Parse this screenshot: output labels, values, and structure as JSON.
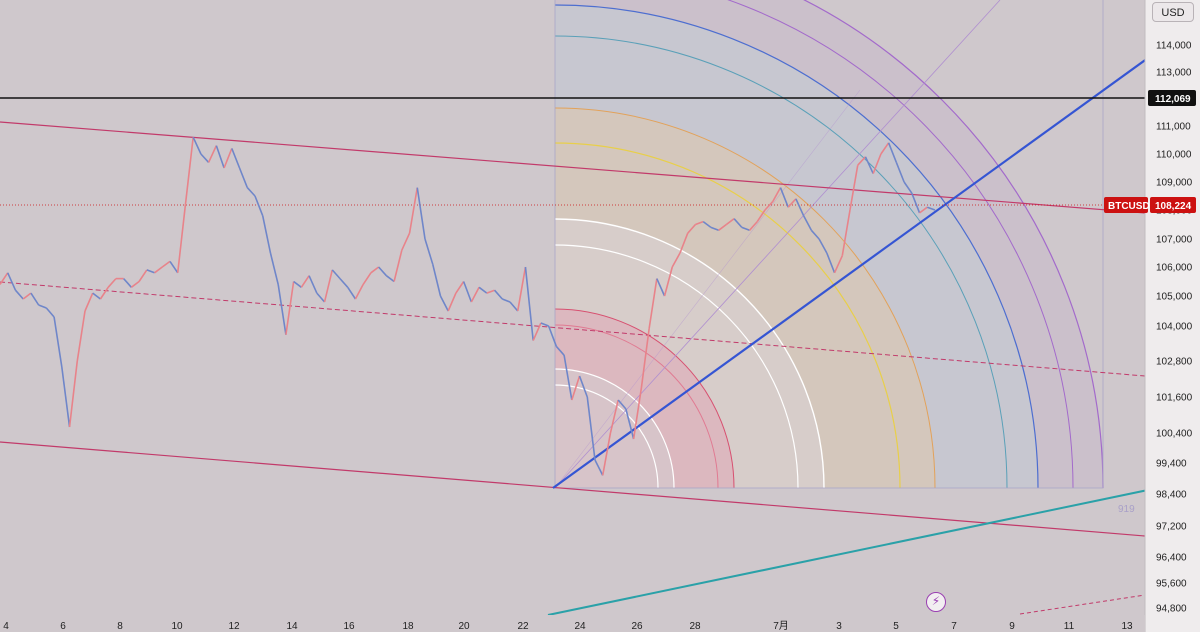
{
  "currency_button": "USD",
  "gann_label": "919",
  "colors": {
    "background": "#cfc8cc",
    "axis_background": "#efeced",
    "candle_up": "#e8838a",
    "candle_down": "#6f86c9",
    "channel_line": "#c23a6a",
    "trend_line": "#3555d3",
    "teal_line": "#2aa1a8",
    "horizontal_line": "#111111",
    "price_tag": "#cc1111",
    "gann_arc": "#a36acb"
  },
  "icons": {
    "quick_action": "lightning-icon"
  },
  "chart_data": {
    "type": "line",
    "symbol": "BTCUSD",
    "y_axis": {
      "ticks": [
        94800,
        95600,
        96400,
        97200,
        98400,
        99400,
        100400,
        101600,
        102800,
        104000,
        105000,
        106000,
        107000,
        108000,
        109000,
        110000,
        111000,
        113000,
        114000
      ],
      "tick_labels": [
        "94,800",
        "95,600",
        "96,400",
        "97,200",
        "98,400",
        "99,400",
        "100,400",
        "101,600",
        "102,800",
        "104,000",
        "105,000",
        "106,000",
        "107,000",
        "108,000",
        "109,000",
        "110,000",
        "111,000",
        "113,000",
        "114,000"
      ]
    },
    "x_axis": {
      "tick_labels": [
        "4",
        "6",
        "8",
        "10",
        "12",
        "14",
        "16",
        "18",
        "20",
        "22",
        "24",
        "26",
        "28",
        "7月",
        "3",
        "5",
        "7",
        "9",
        "11",
        "13"
      ]
    },
    "horizontal_line": {
      "price": 112069,
      "label": "112,069"
    },
    "current_price": {
      "price": 108224,
      "label": "108,224",
      "symbol_label": "BTCUSD"
    },
    "series": [
      {
        "values": [
          105400,
          105800,
          105200,
          104900,
          105100,
          104700,
          104600,
          104300,
          102600,
          100600,
          102800,
          104500,
          105100,
          104900,
          105300,
          105600,
          105600,
          105300,
          105500,
          105900,
          105800,
          106000,
          106200,
          105800,
          108200,
          110600,
          110000,
          109700,
          110300,
          109500,
          110200,
          109500,
          108800,
          108500,
          107800,
          106500,
          105400,
          103700,
          105500,
          105300,
          105700,
          105100,
          104800,
          105900,
          105600,
          105300,
          104900,
          105400,
          105800,
          106000,
          105700,
          105500,
          106600,
          107200,
          108800,
          107000,
          106100,
          105000,
          104500,
          105100,
          105500,
          104800,
          105300,
          105100,
          105200,
          104900,
          104800,
          104500,
          106000,
          103500,
          104100,
          104000,
          103300,
          103000,
          101500,
          102300,
          101600,
          99500,
          99000,
          100400,
          101500,
          101200,
          100200,
          101900,
          103900,
          105600,
          105000,
          106000,
          106500,
          107200,
          107500,
          107600,
          107400,
          107300,
          107500,
          107700,
          107400,
          107300,
          107600,
          108000,
          108300,
          108800,
          108100,
          108400,
          107800,
          107300,
          107000,
          106500,
          105800,
          106400,
          108000,
          109600,
          109900,
          109300,
          110000,
          110400,
          109700,
          109000,
          108600,
          107900,
          108100,
          108000
        ]
      }
    ]
  }
}
